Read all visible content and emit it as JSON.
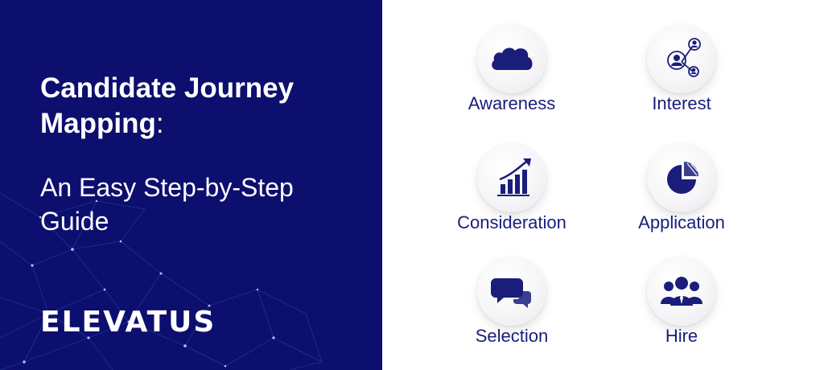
{
  "banner": {
    "title_line1": "Candidate Journey",
    "title_line2": "Mapping",
    "title_colon": ":",
    "subtitle_line1": "An Easy Step-by-Step",
    "subtitle_line2": "Guide",
    "logo_text": "ELEVATUS"
  },
  "steps": [
    {
      "label": "Awareness",
      "icon": "cloud-icon"
    },
    {
      "label": "Interest",
      "icon": "people-network-icon"
    },
    {
      "label": "Consideration",
      "icon": "growth-chart-icon"
    },
    {
      "label": "Application",
      "icon": "pie-chart-icon"
    },
    {
      "label": "Selection",
      "icon": "chat-bubbles-icon"
    },
    {
      "label": "Hire",
      "icon": "team-icon"
    }
  ],
  "colors": {
    "panel_background": "#0c0f6e",
    "icon_color": "#1a1d7a",
    "text_white": "#ffffff"
  }
}
